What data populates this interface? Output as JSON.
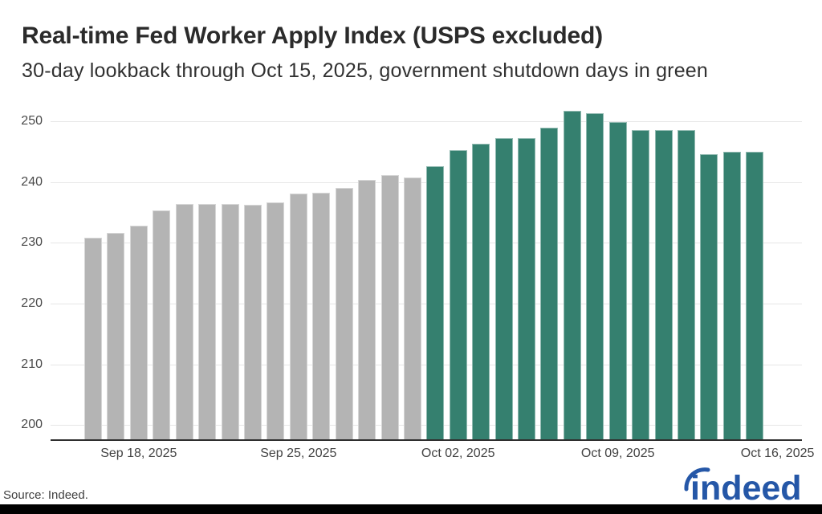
{
  "header": {
    "title": "Real-time Fed Worker Apply Index (USPS excluded)",
    "subtitle": "30-day lookback through Oct 15, 2025, government shutdown days in green"
  },
  "footer": {
    "source": "Source: Indeed.",
    "logo_text": "indeed",
    "brand_blue": "#2557a7",
    "bar_color": "#000000"
  },
  "chart_data": {
    "type": "bar",
    "title": "Real-time Fed Worker Apply Index (USPS excluded)",
    "subtitle": "30-day lookback through Oct 15, 2025, government shutdown days in green",
    "categories": [
      "Sep 16, 2025",
      "Sep 17, 2025",
      "Sep 18, 2025",
      "Sep 19, 2025",
      "Sep 20, 2025",
      "Sep 21, 2025",
      "Sep 22, 2025",
      "Sep 23, 2025",
      "Sep 24, 2025",
      "Sep 25, 2025",
      "Sep 26, 2025",
      "Sep 27, 2025",
      "Sep 28, 2025",
      "Sep 29, 2025",
      "Sep 30, 2025",
      "Oct 01, 2025",
      "Oct 02, 2025",
      "Oct 03, 2025",
      "Oct 04, 2025",
      "Oct 05, 2025",
      "Oct 06, 2025",
      "Oct 07, 2025",
      "Oct 08, 2025",
      "Oct 09, 2025",
      "Oct 10, 2025",
      "Oct 11, 2025",
      "Oct 12, 2025",
      "Oct 13, 2025",
      "Oct 14, 2025",
      "Oct 15, 2025"
    ],
    "values": [
      230.9,
      231.6,
      232.8,
      235.3,
      236.4,
      236.4,
      236.4,
      236.2,
      236.7,
      238.1,
      238.2,
      239.1,
      240.4,
      241.2,
      240.7,
      242.6,
      245.2,
      246.3,
      247.2,
      247.3,
      248.9,
      251.8,
      251.3,
      249.9,
      248.5,
      248.5,
      248.6,
      244.6,
      245.0,
      245.0
    ],
    "shutdown_start_index": 15,
    "bar_color": "#B4B4B4",
    "shutdown_color": "#35806F",
    "ylim": [
      197.5,
      254
    ],
    "yticks": [
      200,
      210,
      220,
      230,
      240,
      250
    ],
    "xticks": [
      {
        "label": "Sep 18, 2025",
        "index": 2
      },
      {
        "label": "Sep 25, 2025",
        "index": 9
      },
      {
        "label": "Oct 02, 2025",
        "index": 16
      },
      {
        "label": "Oct 09, 2025",
        "index": 23
      },
      {
        "label": "Oct 16, 2025",
        "index": 30
      }
    ],
    "grid": true,
    "legend": "none",
    "xlabel": "",
    "ylabel": ""
  }
}
